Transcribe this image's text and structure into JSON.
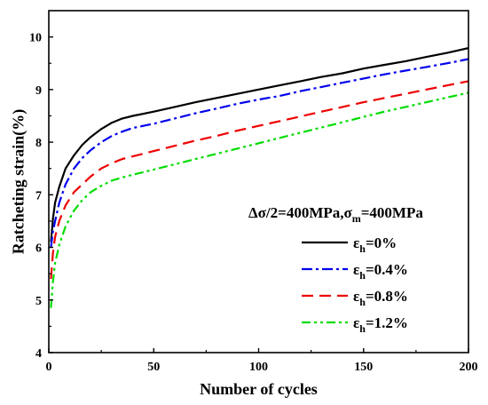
{
  "chart_data": {
    "type": "line",
    "title": "",
    "xlabel": "Number of cycles",
    "ylabel": "Ratcheting strain(%)",
    "xlim": [
      0,
      200
    ],
    "ylim": [
      4,
      10.5
    ],
    "xticks": [
      0,
      50,
      100,
      150,
      200
    ],
    "yticks": [
      4,
      5,
      6,
      7,
      8,
      9,
      10
    ],
    "grid": false,
    "legend_position": "right",
    "legend_title": {
      "main": "Δσ/2=400MPa,σ",
      "sub": "m",
      "tail": "=400MPa"
    },
    "series": [
      {
        "name": "εh=0%",
        "label_main": "ε",
        "label_sub": "h",
        "label_tail": "=0%",
        "color": "#000000",
        "dash": "solid",
        "x": [
          1,
          2,
          3,
          5,
          8,
          12,
          16,
          20,
          25,
          30,
          35,
          40,
          50,
          60,
          70,
          80,
          90,
          100,
          110,
          120,
          130,
          140,
          150,
          160,
          170,
          180,
          190,
          200
        ],
        "y": [
          6.1,
          6.55,
          6.85,
          7.15,
          7.5,
          7.75,
          7.95,
          8.1,
          8.25,
          8.37,
          8.45,
          8.5,
          8.58,
          8.67,
          8.76,
          8.84,
          8.92,
          9.0,
          9.08,
          9.16,
          9.24,
          9.31,
          9.4,
          9.47,
          9.54,
          9.62,
          9.7,
          9.79
        ]
      },
      {
        "name": "εh=0.4%",
        "label_main": "ε",
        "label_sub": "h",
        "label_tail": "=0.4%",
        "color": "#0000ee",
        "dash": "dashdot",
        "x": [
          1,
          2,
          3,
          5,
          8,
          12,
          16,
          20,
          25,
          30,
          35,
          40,
          50,
          60,
          70,
          80,
          90,
          100,
          110,
          120,
          130,
          140,
          150,
          160,
          170,
          180,
          190,
          200
        ],
        "y": [
          6.0,
          6.3,
          6.5,
          6.85,
          7.2,
          7.5,
          7.7,
          7.85,
          8.0,
          8.12,
          8.2,
          8.27,
          8.35,
          8.45,
          8.55,
          8.64,
          8.73,
          8.81,
          8.88,
          8.97,
          9.05,
          9.13,
          9.21,
          9.29,
          9.36,
          9.43,
          9.5,
          9.58
        ]
      },
      {
        "name": "εh=0.8%",
        "label_main": "ε",
        "label_sub": "h",
        "label_tail": "=0.8%",
        "color": "#ee0000",
        "dash": "dash",
        "x": [
          1,
          2,
          3,
          5,
          8,
          12,
          16,
          20,
          25,
          30,
          35,
          40,
          50,
          60,
          70,
          80,
          90,
          100,
          110,
          120,
          130,
          140,
          150,
          160,
          170,
          180,
          190,
          200
        ],
        "y": [
          5.4,
          5.9,
          6.2,
          6.5,
          6.8,
          7.05,
          7.2,
          7.35,
          7.5,
          7.6,
          7.68,
          7.73,
          7.83,
          7.93,
          8.03,
          8.12,
          8.22,
          8.31,
          8.4,
          8.49,
          8.58,
          8.67,
          8.76,
          8.84,
          8.92,
          9.0,
          9.08,
          9.16
        ]
      },
      {
        "name": "εh=1.2%",
        "label_main": "ε",
        "label_sub": "h",
        "label_tail": "=1.2%",
        "color": "#00dd00",
        "dash": "dashdotdot",
        "x": [
          1,
          2,
          3,
          5,
          8,
          12,
          16,
          20,
          25,
          30,
          35,
          40,
          50,
          60,
          70,
          80,
          90,
          100,
          110,
          120,
          130,
          140,
          150,
          160,
          170,
          180,
          190,
          200
        ],
        "y": [
          4.85,
          5.35,
          5.7,
          6.05,
          6.4,
          6.7,
          6.9,
          7.05,
          7.17,
          7.27,
          7.33,
          7.38,
          7.48,
          7.58,
          7.68,
          7.78,
          7.88,
          7.98,
          8.08,
          8.18,
          8.28,
          8.38,
          8.48,
          8.58,
          8.67,
          8.76,
          8.85,
          8.94
        ]
      }
    ]
  }
}
